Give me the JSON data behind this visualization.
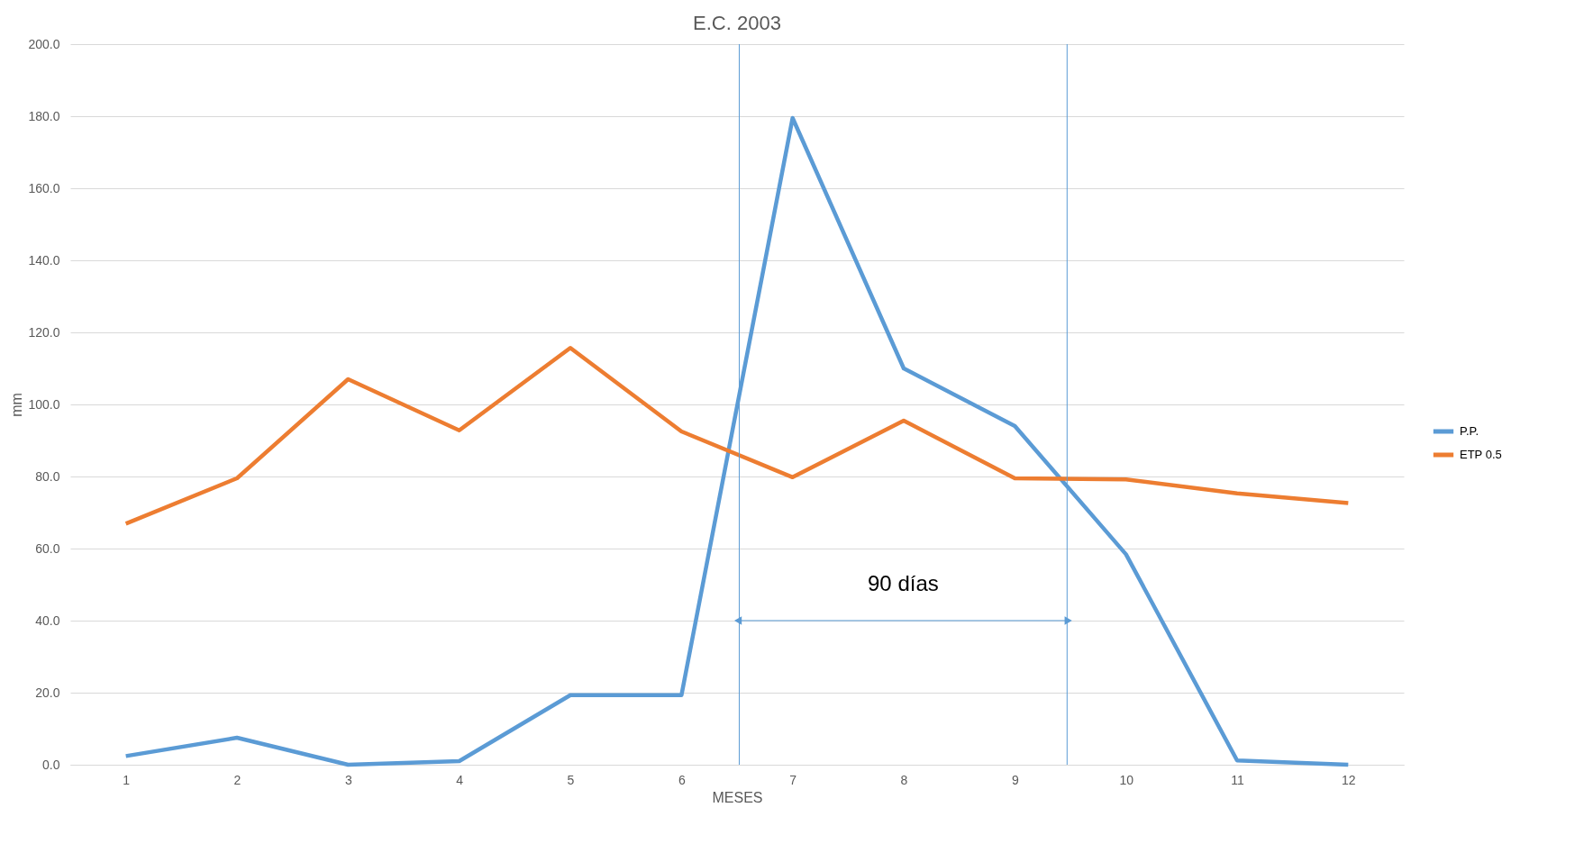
{
  "chart_data": {
    "type": "line",
    "title": "E.C. 2003",
    "xlabel": "MESES",
    "ylabel": "mm",
    "x": [
      1,
      2,
      3,
      4,
      5,
      6,
      7,
      8,
      9,
      10,
      11,
      12
    ],
    "xlim": [
      0.5,
      12.5
    ],
    "xticks": [
      1,
      2,
      3,
      4,
      5,
      6,
      7,
      8,
      9,
      10,
      11,
      12
    ],
    "ylim": [
      0,
      200
    ],
    "yticks": [
      {
        "value": 0,
        "label": "0.0"
      },
      {
        "value": 20,
        "label": "20.0"
      },
      {
        "value": 40,
        "label": "40.0"
      },
      {
        "value": 60,
        "label": "60.0"
      },
      {
        "value": 80,
        "label": "80.0"
      },
      {
        "value": 100,
        "label": "100.0"
      },
      {
        "value": 120,
        "label": "120.0"
      },
      {
        "value": 140,
        "label": "140.0"
      },
      {
        "value": 160,
        "label": "160.0"
      },
      {
        "value": 180,
        "label": "180.0"
      },
      {
        "value": 200,
        "label": "200.0"
      }
    ],
    "series": [
      {
        "name": "P.P.",
        "color": "#5b9bd5",
        "values": [
          2.4,
          7.5,
          0,
          1,
          19.3,
          19.3,
          179.5,
          110,
          94,
          58.4,
          1.2,
          0
        ]
      },
      {
        "name": "ETP 0.5",
        "color": "#ed7d31",
        "values": [
          66.9,
          79.5,
          107,
          92.8,
          115.7,
          92.5,
          79.8,
          95.5,
          79.5,
          79.2,
          75.3,
          72.6
        ]
      }
    ],
    "ref_lines": [
      {
        "axis": "x",
        "value": 6.52,
        "label": null,
        "color": "#5b9bd5"
      },
      {
        "axis": "x",
        "value": 9.47,
        "label": null,
        "color": "#5b9bd5"
      }
    ],
    "annotations": [
      "90 días"
    ],
    "grid": "y",
    "legend": "right",
    "marker": "none",
    "line_style": "solid"
  }
}
